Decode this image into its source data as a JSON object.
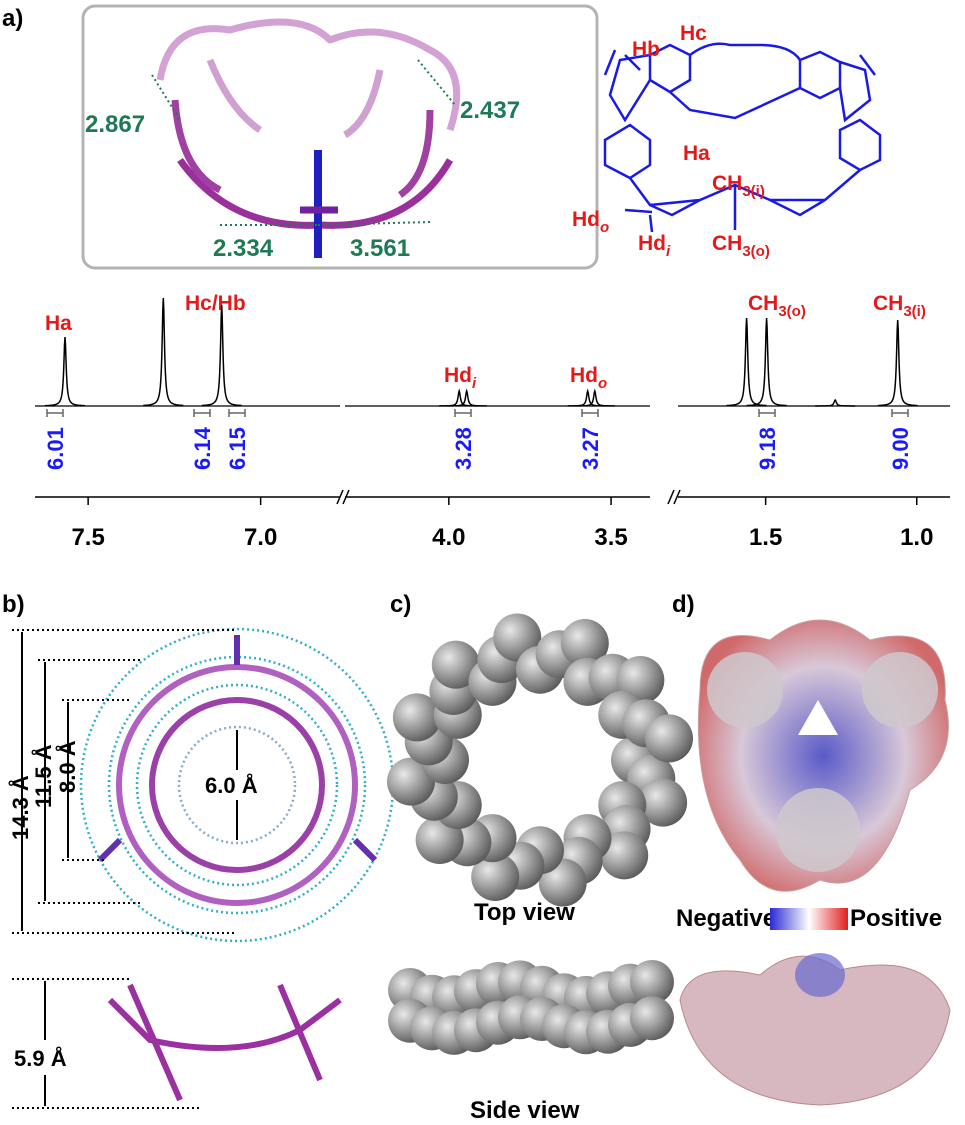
{
  "panels": {
    "a": "a)",
    "b": "b)",
    "c": "c)",
    "d": "d)"
  },
  "distances": [
    "2.867",
    "2.437",
    "2.334",
    "3.561"
  ],
  "structure_labels": {
    "hb": "Hb",
    "hc": "Hc",
    "ha": "Ha",
    "ch3_i": {
      "main": "CH",
      "sub": "3(i)"
    },
    "hd_o": {
      "main": "Hd",
      "sub": "o"
    },
    "hd_i": {
      "main": "Hd",
      "sub": "i"
    },
    "ch3_o": {
      "main": "CH",
      "sub": "3(o)"
    }
  },
  "spectrum": {
    "segments": [
      {
        "xlim": [
          7.654,
          6.77
        ],
        "xticks": [
          7.5,
          {
            "value": 7,
            "label": "7.0"
          }
        ]
      },
      {
        "xlim": [
          4.32,
          3.38
        ],
        "xticks": [
          {
            "value": 4,
            "label": "4.0"
          },
          3.5
        ]
      },
      {
        "xlim": [
          1.79,
          0.89
        ],
        "xticks": [
          1.5,
          {
            "value": 1,
            "label": "1.0"
          }
        ]
      }
    ],
    "peaks": [
      {
        "ppm": 7.567,
        "height": 69
      },
      {
        "ppm": 7.282,
        "height": 108
      },
      {
        "ppm": 7.113,
        "height": 101
      },
      {
        "ppm": 3.968,
        "height": 15
      },
      {
        "ppm": 3.945,
        "height": 15
      },
      {
        "ppm": 3.572,
        "height": 15
      },
      {
        "ppm": 3.55,
        "height": 15
      },
      {
        "ppm": 1.563,
        "height": 88
      },
      {
        "ppm": 1.497,
        "height": 88
      },
      {
        "ppm": 1.27,
        "height": 6
      },
      {
        "ppm": 1.063,
        "height": 86
      }
    ],
    "peak_labels": {
      "ha": "Ha",
      "hchb": "Hc/Hb",
      "hd_i": {
        "main": "Hd",
        "sub": "i"
      },
      "hd_o": {
        "main": "Hd",
        "sub": "o"
      },
      "ch3_o": {
        "main": "CH",
        "sub": "3(o)"
      },
      "ch3_i": {
        "main": "CH",
        "sub": "3(i)"
      }
    },
    "integrals": [
      "6.01",
      "6.14",
      "6.15",
      "3.28",
      "3.27",
      "9.18",
      "9.00"
    ]
  },
  "dimensions": [
    "14.3 Å",
    "11.5 Å",
    "8.0 Å",
    "6.0 Å",
    "5.9 Å"
  ],
  "views": [
    "Top view",
    "Side view"
  ],
  "esp_scale": [
    "Negative",
    "Positive"
  ]
}
